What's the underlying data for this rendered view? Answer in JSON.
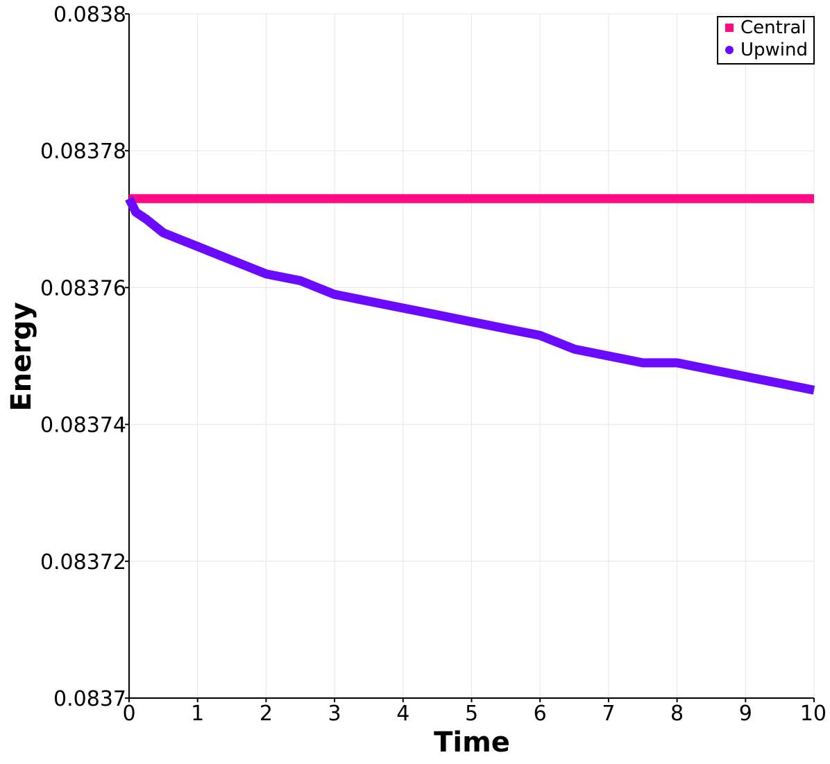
{
  "chart_data": {
    "type": "line",
    "title": "",
    "xlabel": "Time",
    "ylabel": "Energy",
    "xlim": [
      0,
      10
    ],
    "ylim": [
      0.0837,
      0.0838
    ],
    "x_ticks": [
      0,
      1,
      2,
      3,
      4,
      5,
      6,
      7,
      8,
      9,
      10
    ],
    "x_tick_labels": [
      "0",
      "1",
      "2",
      "3",
      "4",
      "5",
      "6",
      "7",
      "8",
      "9",
      "10"
    ],
    "y_ticks": [
      0.0837,
      0.08372,
      0.08374,
      0.08376,
      0.08378,
      0.0838
    ],
    "y_tick_labels": [
      "0.0837",
      "0.08372",
      "0.08374",
      "0.08376",
      "0.08378",
      "0.0838"
    ],
    "grid": true,
    "legend_position": "top-right",
    "series": [
      {
        "name": "Central",
        "color": "#ff0a82",
        "marker": "square",
        "x": [
          0,
          1,
          2,
          3,
          4,
          5,
          6,
          7,
          8,
          9,
          10
        ],
        "y": [
          0.083773,
          0.083773,
          0.083773,
          0.083773,
          0.083773,
          0.083773,
          0.083773,
          0.083773,
          0.083773,
          0.083773,
          0.083773
        ]
      },
      {
        "name": "Upwind",
        "color": "#6a0aff",
        "marker": "circle",
        "x": [
          0,
          0.1,
          0.25,
          0.5,
          0.75,
          1,
          1.5,
          2,
          2.5,
          3,
          3.5,
          4,
          4.5,
          5,
          5.5,
          6,
          6.5,
          7,
          7.5,
          8,
          8.5,
          9,
          9.5,
          10
        ],
        "y": [
          0.083773,
          0.083771,
          0.08377,
          0.083768,
          0.083767,
          0.083766,
          0.083764,
          0.083762,
          0.083761,
          0.083759,
          0.083758,
          0.083757,
          0.083756,
          0.083755,
          0.083754,
          0.083753,
          0.083751,
          0.08375,
          0.083749,
          0.083749,
          0.083748,
          0.083747,
          0.083746,
          0.083745
        ]
      }
    ]
  }
}
